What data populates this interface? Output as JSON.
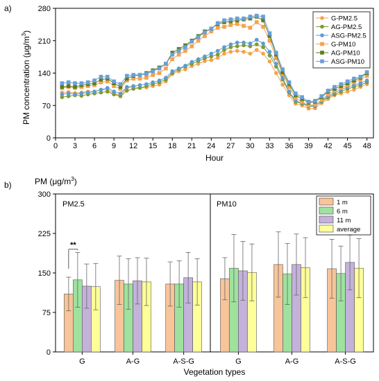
{
  "panel_a_label": "a)",
  "panel_b_label": "b)",
  "chart_data": [
    {
      "type": "line",
      "ylabel": "PM concentration (μg/m³)",
      "ylabel_main": "PM concentration (μg/m",
      "ylabel_sup": "3",
      "ylabel_close": ")",
      "xlabel": "Hour",
      "xlim": [
        0,
        49
      ],
      "ylim": [
        0,
        280
      ],
      "xticks": [
        0,
        3,
        6,
        9,
        12,
        15,
        18,
        21,
        24,
        27,
        30,
        33,
        36,
        39,
        42,
        45,
        48
      ],
      "yticks": [
        0,
        70,
        140,
        210,
        280
      ],
      "x": [
        1,
        2,
        3,
        4,
        5,
        6,
        7,
        8,
        9,
        10,
        11,
        12,
        13,
        14,
        15,
        16,
        17,
        18,
        19,
        20,
        21,
        22,
        23,
        24,
        25,
        26,
        27,
        28,
        29,
        30,
        31,
        32,
        33,
        34,
        35,
        36,
        37,
        38,
        39,
        40,
        41,
        42,
        43,
        44,
        45,
        46,
        47,
        48
      ],
      "legend_position": "top-right",
      "series": [
        {
          "name": "G-PM2.5",
          "color": "#f5a24b",
          "marker": "circle",
          "values": [
            98,
            99,
            97,
            98,
            100,
            100,
            104,
            104,
            96,
            92,
            108,
            110,
            108,
            109,
            112,
            115,
            122,
            138,
            144,
            148,
            155,
            160,
            166,
            168,
            173,
            182,
            186,
            188,
            186,
            182,
            190,
            182,
            165,
            140,
            115,
            92,
            74,
            70,
            63,
            64,
            75,
            84,
            92,
            96,
            100,
            104,
            110,
            116
          ]
        },
        {
          "name": "AG-PM2.5",
          "color": "#7f9a2e",
          "marker": "circle",
          "values": [
            88,
            90,
            92,
            91,
            94,
            96,
            98,
            100,
            94,
            90,
            102,
            106,
            108,
            112,
            116,
            120,
            126,
            140,
            148,
            154,
            160,
            166,
            172,
            176,
            180,
            190,
            196,
            198,
            200,
            198,
            202,
            196,
            178,
            154,
            126,
            98,
            78,
            74,
            68,
            70,
            78,
            88,
            94,
            100,
            106,
            110,
            114,
            120
          ]
        },
        {
          "name": "ASG-PM2.5",
          "color": "#5b9bd5",
          "marker": "circle",
          "values": [
            94,
            96,
            94,
            96,
            98,
            100,
            104,
            108,
            100,
            96,
            110,
            112,
            114,
            116,
            120,
            124,
            130,
            144,
            150,
            156,
            164,
            170,
            176,
            182,
            188,
            196,
            202,
            206,
            206,
            204,
            212,
            204,
            186,
            160,
            130,
            100,
            80,
            76,
            68,
            68,
            80,
            90,
            98,
            104,
            110,
            114,
            118,
            124
          ]
        },
        {
          "name": "G-PM10",
          "color": "#f5a24b",
          "marker": "square",
          "values": [
            108,
            110,
            108,
            110,
            112,
            114,
            120,
            122,
            112,
            106,
            124,
            128,
            128,
            130,
            136,
            140,
            150,
            170,
            180,
            188,
            198,
            210,
            220,
            230,
            238,
            240,
            244,
            246,
            242,
            238,
            250,
            240,
            210,
            172,
            138,
            110,
            86,
            78,
            70,
            72,
            82,
            94,
            102,
            108,
            114,
            120,
            126,
            134
          ]
        },
        {
          "name": "AG-PM10",
          "color": "#5e7d1d",
          "marker": "square",
          "values": [
            110,
            112,
            110,
            114,
            116,
            118,
            126,
            128,
            118,
            110,
            128,
            134,
            136,
            140,
            146,
            152,
            160,
            184,
            192,
            200,
            210,
            220,
            230,
            236,
            246,
            250,
            252,
            254,
            256,
            258,
            262,
            254,
            220,
            180,
            142,
            116,
            92,
            84,
            76,
            78,
            88,
            100,
            106,
            112,
            118,
            124,
            130,
            140
          ]
        },
        {
          "name": "ASG-PM10",
          "color": "#6a9fd8",
          "marker": "square",
          "values": [
            118,
            120,
            118,
            118,
            120,
            124,
            132,
            132,
            122,
            116,
            134,
            136,
            136,
            138,
            144,
            150,
            160,
            180,
            188,
            196,
            208,
            218,
            228,
            236,
            248,
            254,
            256,
            258,
            258,
            262,
            264,
            262,
            226,
            184,
            148,
            120,
            96,
            88,
            78,
            80,
            90,
            102,
            110,
            116,
            122,
            128,
            132,
            142
          ]
        }
      ]
    },
    {
      "type": "bar",
      "title": "PM (μg/m³)",
      "title_main": "PM (μg/m",
      "title_sup": "3",
      "title_close": ")",
      "xlabel": "Vegetation types",
      "ylim": [
        0,
        300
      ],
      "yticks": [
        0,
        75,
        150,
        225,
        300
      ],
      "panels": [
        {
          "label": "PM2.5",
          "categories": [
            "G",
            "A-G",
            "A-S-G"
          ]
        },
        {
          "label": "PM10",
          "categories": [
            "G",
            "A-G",
            "A-S-G"
          ]
        }
      ],
      "legend_position": "top-right",
      "series": [
        {
          "name": "1 m",
          "color": "#f8c49a",
          "values": [
            110,
            136,
            129,
            139,
            166,
            158
          ],
          "errors": [
            32,
            46,
            42,
            40,
            62,
            56
          ]
        },
        {
          "name": "6 m",
          "color": "#9ee29e",
          "values": [
            137,
            129,
            129,
            159,
            148,
            149
          ],
          "errors": [
            52,
            48,
            44,
            64,
            58,
            52
          ]
        },
        {
          "name": "11 m",
          "color": "#c4b2db",
          "values": [
            125,
            135,
            141,
            154,
            166,
            170
          ],
          "errors": [
            42,
            44,
            48,
            56,
            58,
            52
          ]
        },
        {
          "name": "average",
          "color": "#ffff99",
          "values": [
            124,
            133,
            133,
            151,
            160,
            159
          ],
          "errors": [
            44,
            45,
            44,
            54,
            57,
            56
          ]
        }
      ],
      "annotation": "**"
    }
  ]
}
